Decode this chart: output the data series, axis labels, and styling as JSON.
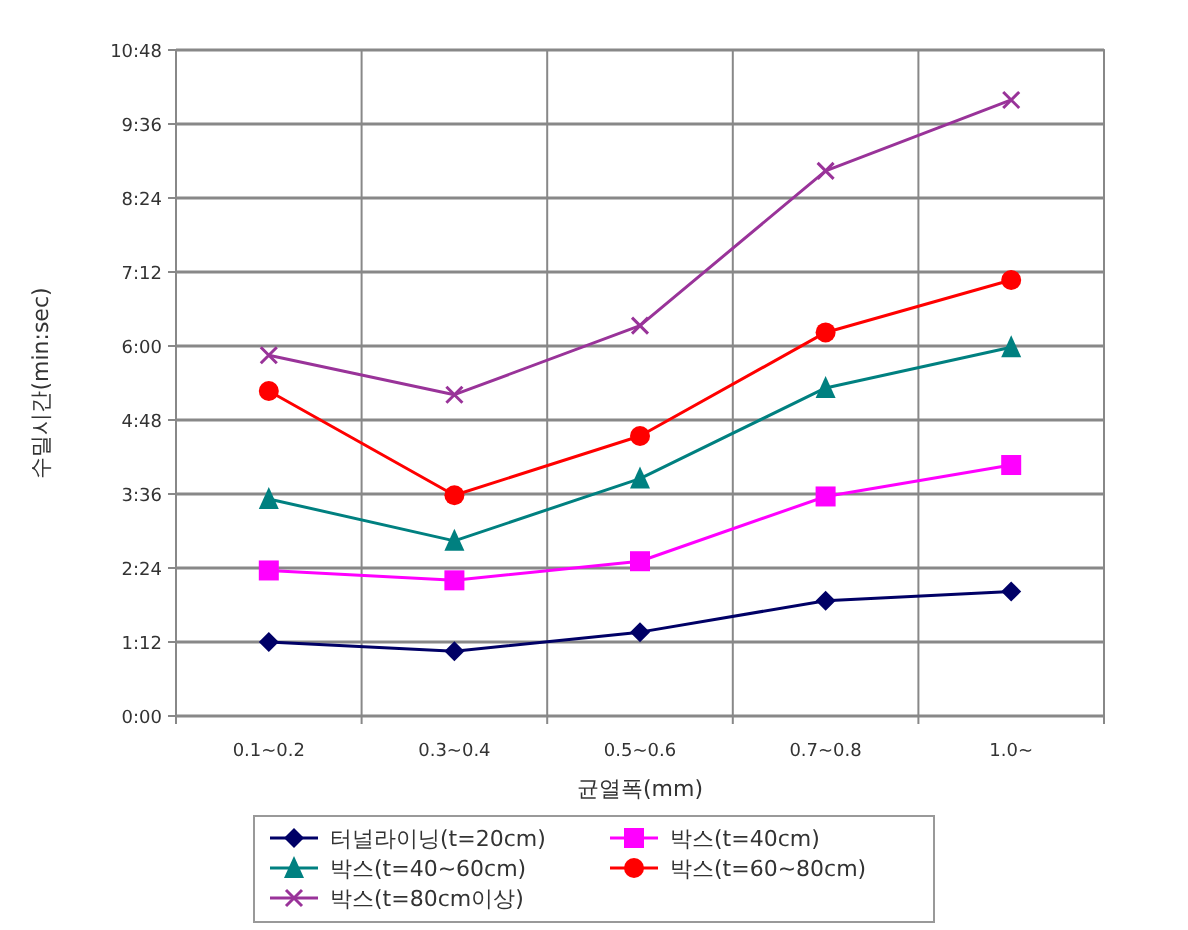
{
  "chart_data": {
    "type": "line",
    "xlabel": "균열폭(mm)",
    "ylabel": "수밀시간(min:sec)",
    "categories": [
      "0.1~0.2",
      "0.3~0.4",
      "0.5~0.6",
      "0.7~0.8",
      "1.0~"
    ],
    "ylim": [
      0,
      10.8
    ],
    "yticks": [
      {
        "value": 0,
        "label": "0:00"
      },
      {
        "value": 1.2,
        "label": "1:12"
      },
      {
        "value": 2.4,
        "label": "2:24"
      },
      {
        "value": 3.6,
        "label": "3:36"
      },
      {
        "value": 4.8,
        "label": "4:48"
      },
      {
        "value": 6,
        "label": "6:00"
      },
      {
        "value": 7.2,
        "label": "7:12"
      },
      {
        "value": 8.4,
        "label": "8:24"
      },
      {
        "value": 9.6,
        "label": "9:36"
      },
      {
        "value": 10.8,
        "label": "10:48"
      }
    ],
    "grid": true,
    "legend": "bottom",
    "series": [
      {
        "name": "터널라이닝(t=20cm)",
        "color": "#000066",
        "marker": "diamond",
        "values": [
          1.2,
          1.05,
          1.36,
          1.87,
          2.02
        ]
      },
      {
        "name": "박스(t=40cm)",
        "color": "#ff00ff",
        "marker": "square",
        "values": [
          2.36,
          2.2,
          2.51,
          3.56,
          4.07
        ]
      },
      {
        "name": "박스(t=40~60cm)",
        "color": "#008080",
        "marker": "triangle",
        "values": [
          3.52,
          2.84,
          3.85,
          5.32,
          5.98
        ]
      },
      {
        "name": "박스(t=60~80cm)",
        "color": "#ff0000",
        "marker": "circle",
        "values": [
          5.27,
          3.58,
          4.54,
          6.22,
          7.07
        ]
      },
      {
        "name": "박스(t=80cm이상)",
        "color": "#993399",
        "marker": "cross",
        "values": [
          5.85,
          5.21,
          6.33,
          8.84,
          9.99
        ]
      }
    ]
  }
}
